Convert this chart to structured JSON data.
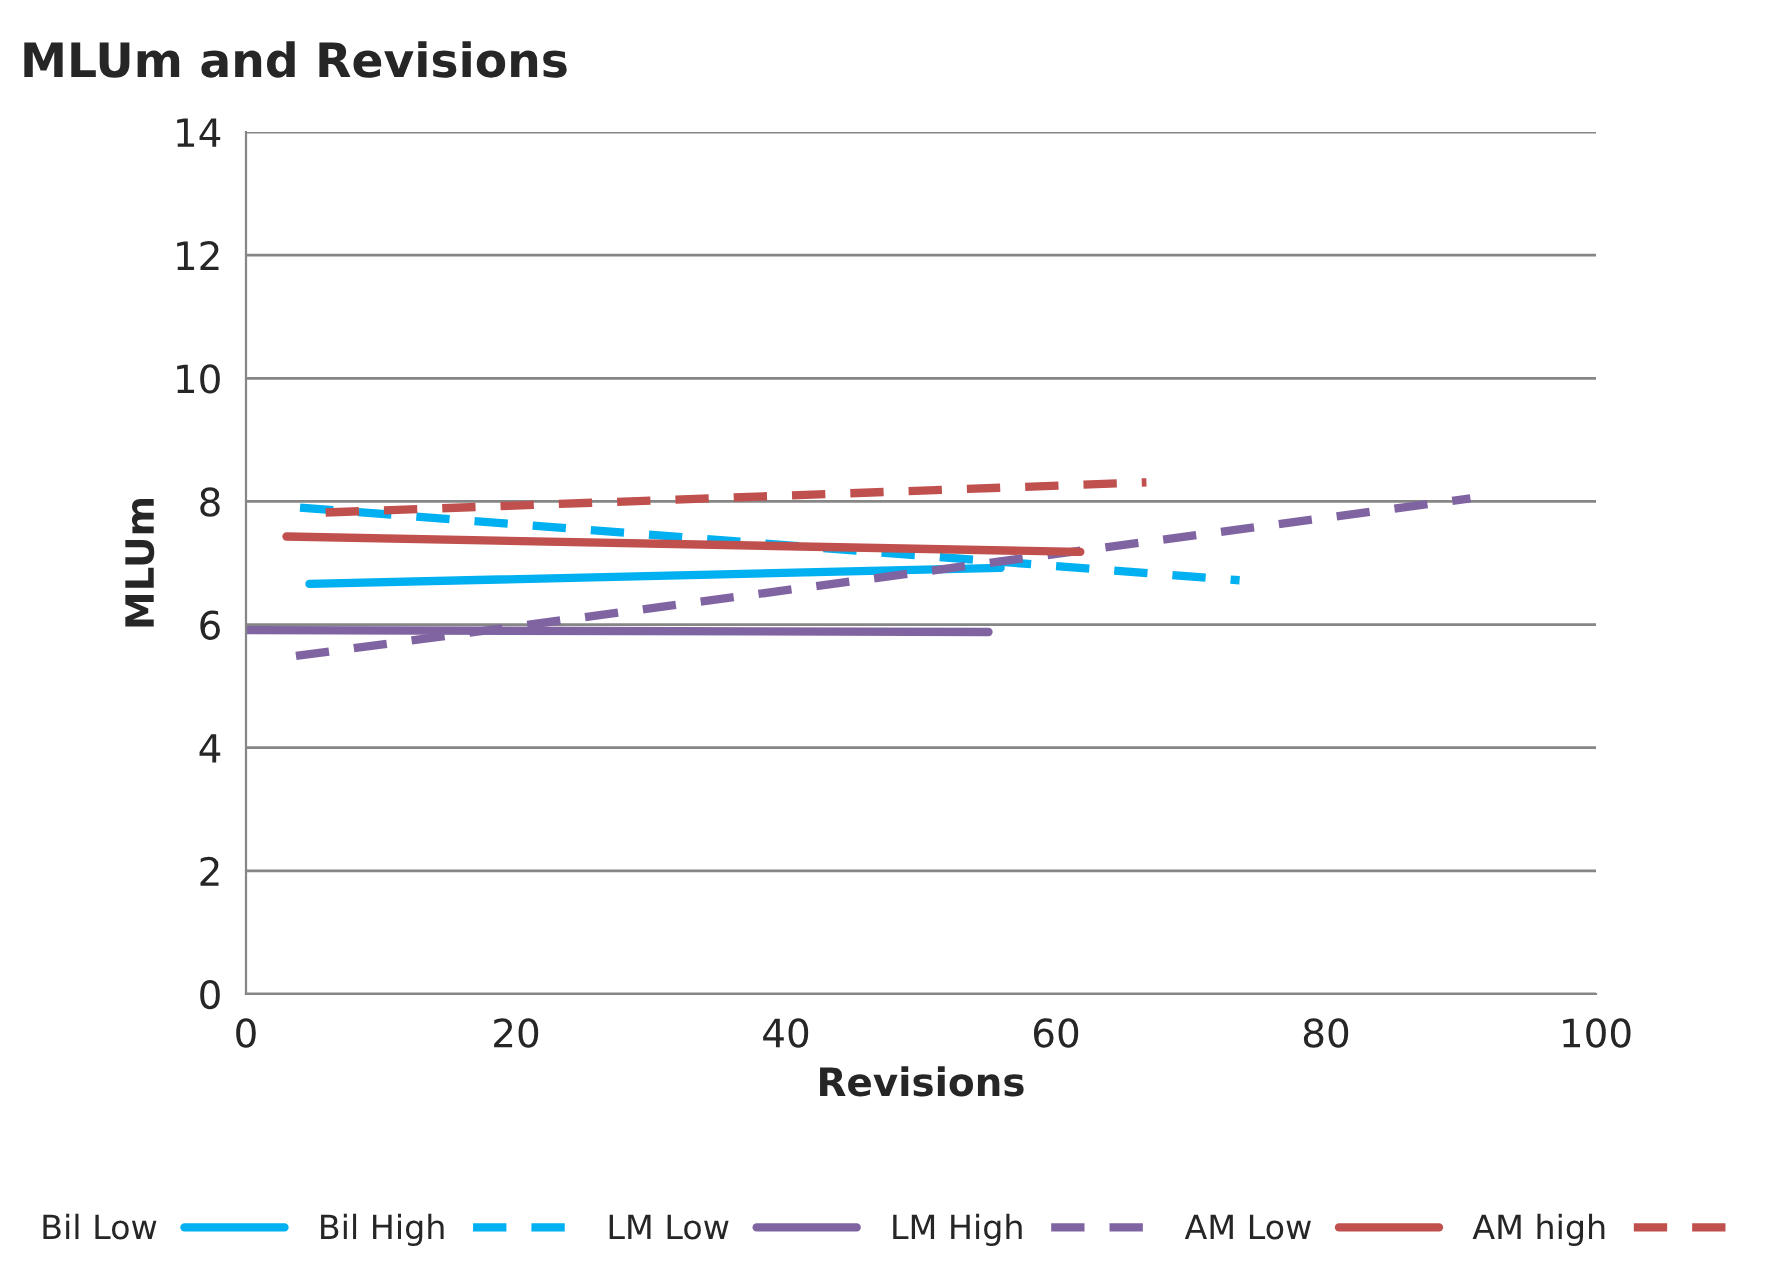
{
  "chart_data": {
    "type": "line",
    "title": "MLUm and Revisions",
    "xlabel": "Revisions",
    "ylabel": "MLUm",
    "series": [
      {
        "name": "Bil Low",
        "color": "#00b0f0",
        "line_style": "solid",
        "x": [
          4.7,
          55.9
        ],
        "values": [
          6.66,
          6.92
        ]
      },
      {
        "name": "Bil High",
        "color": "#00b0f0",
        "line_style": "dashed",
        "x": [
          4,
          73.6
        ],
        "values": [
          7.9,
          6.72
        ]
      },
      {
        "name": "LM Low",
        "color": "#8064a2",
        "line_style": "solid",
        "x": [
          0,
          55
        ],
        "values": [
          5.91,
          5.88
        ]
      },
      {
        "name": "LM High",
        "color": "#8064a2",
        "line_style": "dashed",
        "x": [
          3.7,
          90.7
        ],
        "values": [
          5.49,
          8.05
        ]
      },
      {
        "name": "AM Low",
        "color": "#c0504d",
        "line_style": "solid",
        "x": [
          3,
          61.8
        ],
        "values": [
          7.43,
          7.18
        ]
      },
      {
        "name": "AM high",
        "color": "#c0504d",
        "line_style": "dashed",
        "x": [
          5.9,
          66.7
        ],
        "values": [
          7.82,
          8.31
        ]
      }
    ],
    "xlim": [
      0,
      100
    ],
    "xticks": [
      0,
      20,
      40,
      60,
      80,
      100
    ],
    "ylim": [
      0,
      14
    ],
    "yticks": [
      0,
      2,
      4,
      6,
      8,
      10,
      12,
      14
    ],
    "grid": "y",
    "legend": "bottom"
  }
}
